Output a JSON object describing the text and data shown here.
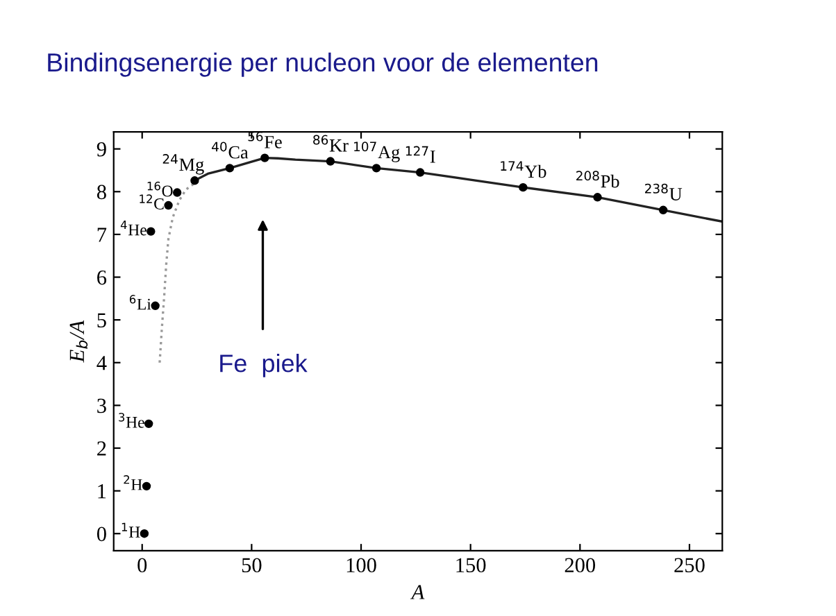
{
  "chart_data": {
    "type": "line",
    "title": "Bindingsenergie per nucleon voor de elementen",
    "xlabel": "A",
    "ylabel": "E$_{b}$/A",
    "xlim": [
      -13,
      265
    ],
    "ylim": [
      -0.4,
      9.4
    ],
    "xticks": [
      0,
      50,
      100,
      150,
      200,
      250
    ],
    "yticks": [
      0,
      1,
      2,
      3,
      4,
      5,
      6,
      7,
      8,
      9
    ],
    "grid": false,
    "legend": false,
    "series": [
      {
        "color": "#222222",
        "line_style": "solid",
        "marker": "none",
        "x": [
          24,
          30,
          40,
          50,
          56,
          62,
          70,
          86,
          107,
          127,
          150,
          174,
          208,
          238,
          265
        ],
        "values": [
          8.26,
          8.42,
          8.55,
          8.7,
          8.79,
          8.78,
          8.75,
          8.71,
          8.55,
          8.45,
          8.28,
          8.1,
          7.87,
          7.57,
          7.3
        ]
      },
      {
        "color": "#999999",
        "line_style": "dotted",
        "marker": "none",
        "x": [
          8,
          9,
          10,
          11,
          12,
          14,
          17,
          20,
          24
        ],
        "values": [
          4.0,
          4.8,
          5.5,
          6.3,
          6.9,
          7.4,
          7.8,
          8.05,
          8.2
        ]
      },
      {
        "type": "scatter",
        "color": "#000000",
        "marker": "circle",
        "x": [
          1,
          2,
          3,
          4,
          6,
          12,
          16,
          24,
          40,
          56,
          86,
          107,
          127,
          174,
          208,
          238
        ],
        "values": [
          0,
          1.11,
          2.57,
          7.07,
          5.33,
          7.68,
          7.98,
          8.26,
          8.55,
          8.79,
          8.71,
          8.55,
          8.45,
          8.1,
          7.87,
          7.57
        ]
      }
    ],
    "annotations": [
      {
        "text": "$^{1}$H",
        "x": 1,
        "y": 0
      },
      {
        "text": "$^{2}$H",
        "x": 2,
        "y": 1.11
      },
      {
        "text": "$^{3}$He",
        "x": 3,
        "y": 2.57
      },
      {
        "text": "$^{4}$He",
        "x": 4,
        "y": 7.07
      },
      {
        "text": "$^{6}$Li",
        "x": 6,
        "y": 5.33
      },
      {
        "text": "$^{12}$C",
        "x": 12,
        "y": 7.68
      },
      {
        "text": "$^{16}$O",
        "x": 16,
        "y": 7.98
      },
      {
        "text": "$^{24}$Mg",
        "x": 24,
        "y": 8.26
      },
      {
        "text": "$^{40}$Ca",
        "x": 40,
        "y": 8.55
      },
      {
        "text": "$^{56}$Fe",
        "x": 56,
        "y": 8.79
      },
      {
        "text": "$^{86}$Kr",
        "x": 86,
        "y": 8.71
      },
      {
        "text": "$^{107}$Ag",
        "x": 107,
        "y": 8.55
      },
      {
        "text": "$^{127}$I",
        "x": 127,
        "y": 8.45
      },
      {
        "text": "$^{174}$Yb",
        "x": 174,
        "y": 8.1
      },
      {
        "text": "$^{208}$Pb",
        "x": 208,
        "y": 7.87
      },
      {
        "text": "$^{238}$U",
        "x": 238,
        "y": 7.57
      },
      "Fe  piek"
    ]
  }
}
